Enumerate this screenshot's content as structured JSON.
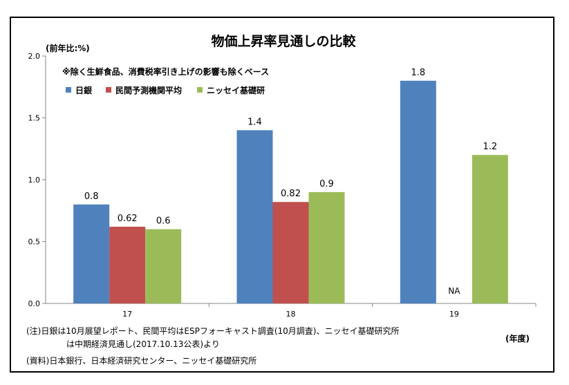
{
  "chart_data": {
    "type": "bar",
    "title": "物価上昇率見通しの比較",
    "subtitle": "※除く生鮮食品、消費税率引き上げの影響も除くベース",
    "ylabel": "(前年比:%)",
    "xlabel": "(年度)",
    "categories": [
      "17",
      "18",
      "19"
    ],
    "ylim": [
      0,
      2.0
    ],
    "yticks": [
      "0.0",
      "0.5",
      "1.0",
      "1.5",
      "2.0"
    ],
    "grid": false,
    "legend_position": "top-left",
    "series": [
      {
        "name": "日銀",
        "color": "#4F81BD",
        "values": [
          0.8,
          1.4,
          1.8
        ],
        "labels": [
          "0.8",
          "1.4",
          "1.8"
        ]
      },
      {
        "name": "民間予測機関平均",
        "color": "#C0504D",
        "values": [
          0.62,
          0.82,
          null
        ],
        "labels": [
          "0.62",
          "0.82",
          "NA"
        ]
      },
      {
        "name": "ニッセイ基礎研",
        "color": "#9BBB59",
        "values": [
          0.6,
          0.9,
          1.2
        ],
        "labels": [
          "0.6",
          "0.9",
          "1.2"
        ]
      }
    ]
  },
  "notes": {
    "note_line1": "(注)日銀は10月展望レポート、民間平均はESPフォーキャスト調査(10月調査)、ニッセイ基礎研究所",
    "note_line2": "は中期経済見通し(2017.10.13公表)より",
    "source": "(資料)日本銀行、日本経済研究センター、ニッセイ基礎研究所"
  }
}
